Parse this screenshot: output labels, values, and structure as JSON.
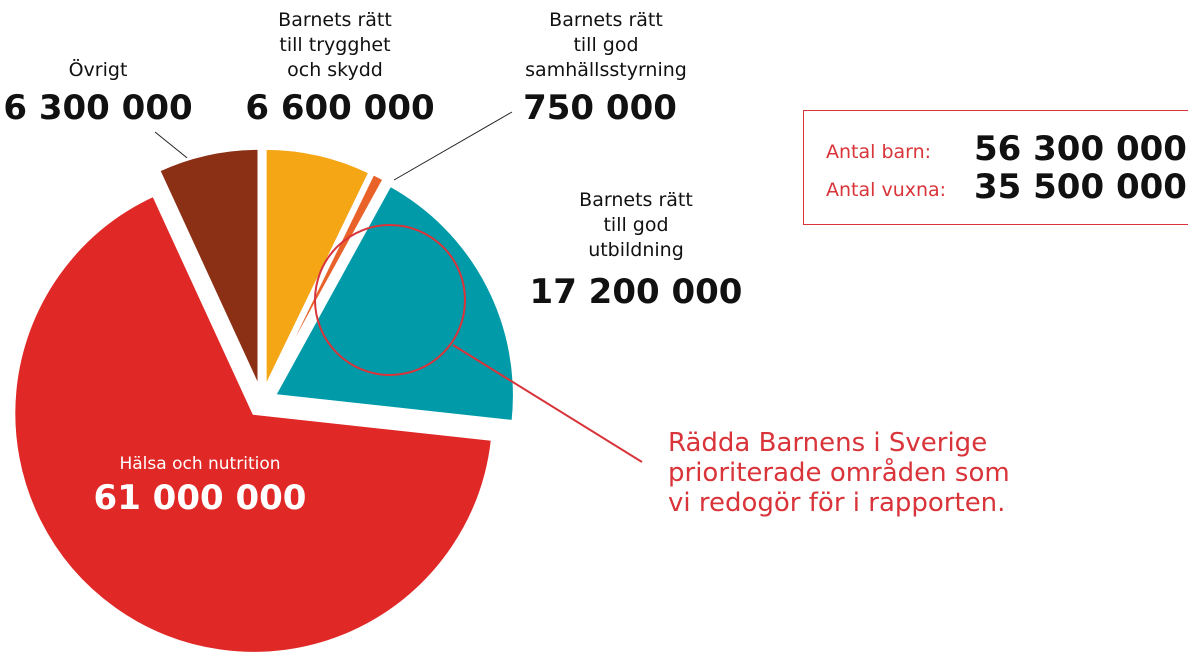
{
  "chart_data": {
    "type": "pie",
    "categories": [
      "Barnets rätt\ntill trygghet\noch skydd",
      "Barnets rätt\ntill god\nsamhällsstyrning",
      "Barnets rätt\ntill god\nutbildning",
      "Hälsa och nutrition",
      "Övrigt"
    ],
    "values": [
      6600000,
      750000,
      17200000,
      61000000,
      6300000
    ],
    "value_labels": [
      "6 600 000",
      "750 000",
      "17 200 000",
      "61 000 000",
      "6 300 000"
    ],
    "colors": [
      "#f5a614",
      "#e8622a",
      "#009aa8",
      "#e02826",
      "#8b3014"
    ],
    "annotation": "Rädda Barnens i Sverige\nprioriterade områden som\nvi redogör för i rapporten."
  },
  "summary": [
    {
      "label": "Antal barn:",
      "value": "56 300 000"
    },
    {
      "label": "Antal vuxna:",
      "value": "35 500 000"
    }
  ]
}
